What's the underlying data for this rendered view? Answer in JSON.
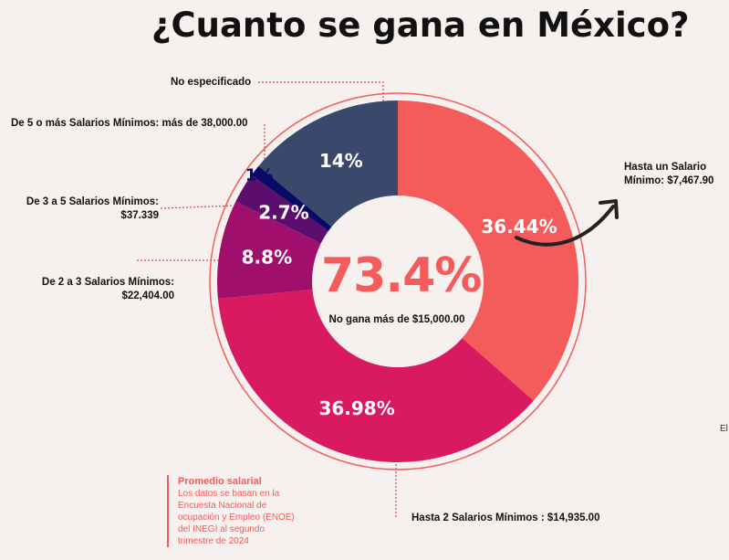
{
  "title": "¿Cuanto se gana en México?",
  "center": {
    "value": "73.4%",
    "caption": "No gana más de  $15,000.00"
  },
  "colors": {
    "background": "#f6f1ee",
    "accent": "#f45b5b",
    "slices": [
      "#f45b5b",
      "#d91a60",
      "#a10f6c",
      "#5b0e6e",
      "#0a0a66",
      "#39486b"
    ]
  },
  "labels": {
    "no_especificado": "No  especificado",
    "cinco_o_mas": "De  5 o más Salarios Mínimos: más de 38,000.00",
    "tres_a_cinco_line1": "De 3 a 5 Salarios Mínimos:",
    "tres_a_cinco_line2": "$37.339",
    "dos_a_tres_line1": "De 2 a 3 Salarios Mínimos:",
    "dos_a_tres_line2": "$22,404.00",
    "hasta_un_line1": "Hasta un Salario",
    "hasta_un_line2": "Mínimo: $7,467.90",
    "hasta_dos": "Hasta 2 Salarios Mínimos : $14,935.00"
  },
  "note": {
    "title": "Promedio salarial",
    "body": "Los datos se basan en la Encuesta Nacional de ocupación y Empleo (ENOE) del INEGI al segundo trimestre de 2024"
  },
  "edge_text": "El",
  "chart_data": {
    "type": "pie",
    "title": "¿Cuanto se gana en México?",
    "categories": [
      "Hasta un Salario Mínimo: $7,467.90",
      "Hasta 2 Salarios Mínimos : $14,935.00",
      "De 2 a 3 Salarios Mínimos: $22,404.00",
      "De 3 a 5 Salarios Mínimos: $37.339",
      "De  5 o más Salarios Mínimos: más de 38,000.00",
      "No  especificado"
    ],
    "values": [
      36.44,
      36.98,
      8.8,
      2.7,
      1,
      14
    ],
    "value_labels": [
      "36.44%",
      "36.98%",
      "8.8%",
      "2.7%",
      "1%",
      "14%"
    ]
  }
}
